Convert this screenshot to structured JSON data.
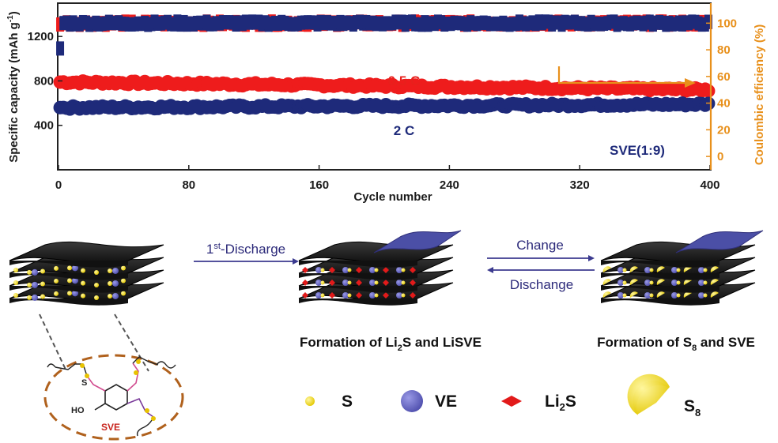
{
  "chart_data": {
    "type": "scatter",
    "title": "",
    "xlabel": "Cycle number",
    "ylabel": "Specific capacity (mAh g",
    "ylabel_sup": "-1",
    "ylabel_close": ")",
    "y2label": "Coulombic efficiency (%)",
    "xlim": [
      0,
      400
    ],
    "ylim": [
      0,
      1500
    ],
    "y2lim": [
      -10,
      115
    ],
    "xticks": [
      "0",
      "80",
      "160",
      "240",
      "320",
      "400"
    ],
    "yticks": [
      "400",
      "800",
      "1200"
    ],
    "y2ticks": [
      "0",
      "20",
      "40",
      "60",
      "80",
      "100"
    ],
    "annotation": "SVE(1:9)",
    "series": [
      {
        "name": "0.5 C",
        "color": "#ee1c1c",
        "axis": "left",
        "kind": "capacity",
        "start": 790,
        "end": 720
      },
      {
        "name": "2 C",
        "color": "#1e2a7a",
        "axis": "left",
        "kind": "capacity",
        "start": 560,
        "end": 590,
        "first_point": 560
      },
      {
        "name": "",
        "color": "#ee1c1c",
        "axis": "right",
        "kind": "coulombic",
        "value": 100
      },
      {
        "name": "",
        "color": "#1e2a7a",
        "axis": "right",
        "kind": "coulombic",
        "value": 100,
        "first_point": 81
      }
    ]
  },
  "schematic": {
    "step1": "1st-Discharge",
    "step1_prefix": "1",
    "step1_sup": "st",
    "step1_suffix": "-Discharge",
    "forward": "Change",
    "backward": "Dischange",
    "caption_middle_a": "Formation of Li",
    "caption_middle_sub": "2",
    "caption_middle_b": "S and LiSVE",
    "caption_right_a": "Formation of S",
    "caption_right_sub": "8",
    "caption_right_b": " and SVE",
    "molecule_label": "SVE",
    "molecule_ho": "HO",
    "molecule_s": "S"
  },
  "legend": {
    "s": "S",
    "ve": "VE",
    "li2s_a": "Li",
    "li2s_sub": "2",
    "li2s_b": "S",
    "s8_a": "S",
    "s8_sub": "8"
  },
  "colors": {
    "accent_axis_right": "#e8901b",
    "navy": "#1e2a7a",
    "red": "#ee1c1c",
    "sulfur": "#f4e01a",
    "ve": "#6e6ec8",
    "sheet": "#1f1f1f",
    "cover": "#4b4fa6",
    "dashed": "#b0611d"
  }
}
